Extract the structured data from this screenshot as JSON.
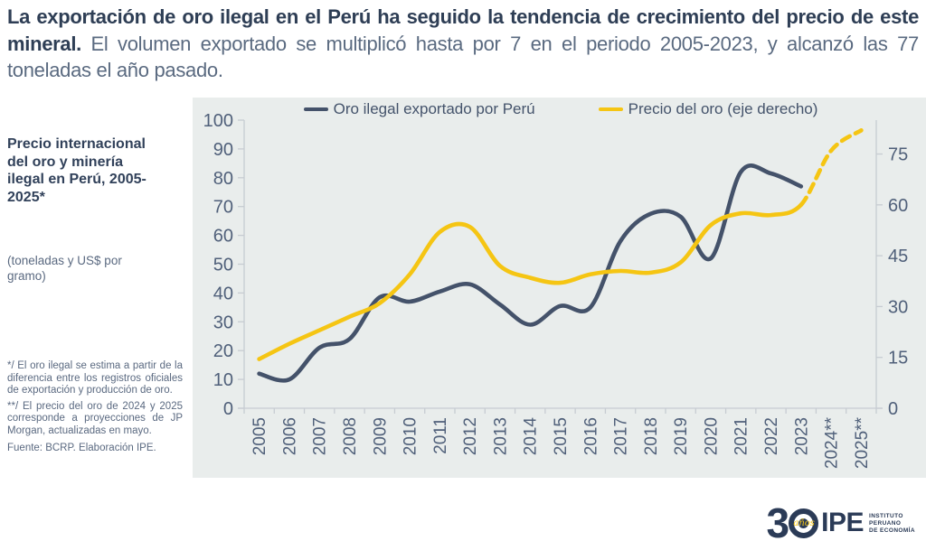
{
  "title": {
    "bold": "La exportación de oro ilegal en el Perú ha seguido la tendencia de crecimiento del precio de este mineral.",
    "regular": " El volumen exportado se multiplicó hasta por 7 en el periodo 2005-2023, y alcanzó las 77 toneladas el año pasado."
  },
  "sidebar": {
    "heading": "Precio internacional del oro y minería ilegal en Perú, 2005-2025*",
    "subtitle": "(toneladas y US$ por gramo)",
    "footnote1": "*/ El oro ilegal se estima a partir de la diferencia entre los registros oficiales de exportación y producción de oro.",
    "footnote2": "**/ El precio del oro de 2024 y 2025 corresponde a proyecciones de JP Morgan, actualizadas en mayo.",
    "source": "Fuente: BCRP. Elaboración IPE."
  },
  "legend": {
    "items": [
      {
        "label": "Oro ilegal exportado por Perú",
        "color": "#44526a"
      },
      {
        "label": "Precio del oro (eje derecho)",
        "color": "#f5c513"
      }
    ]
  },
  "logo": {
    "three": "3",
    "anios": "años",
    "ipe": "IPE",
    "org_lines": [
      "INSTITUTO",
      "PERUANO",
      "DE ECONOMÍA"
    ]
  },
  "colors": {
    "navy_line": "#44526a",
    "gold_line": "#f5c513",
    "axis_line": "#c7ccd2",
    "axis_text": "#50607a",
    "panel_bg": "#e9edec"
  },
  "chart_data": {
    "type": "line",
    "title": "Precio internacional del oro y minería ilegal en Perú, 2005-2025",
    "subtitle": "toneladas y US$ por gramo",
    "legend_position": "top",
    "grid": false,
    "categories": [
      "2005",
      "2006",
      "2007",
      "2008",
      "2009",
      "2010",
      "2011",
      "2012",
      "2013",
      "2014",
      "2015",
      "2016",
      "2017",
      "2018",
      "2019",
      "2020",
      "2021",
      "2022",
      "2023",
      "2024**",
      "2025**"
    ],
    "left_axis": {
      "label": "toneladas",
      "min": 0,
      "max": 100,
      "ticks": [
        100,
        90,
        80,
        70,
        60,
        50,
        40,
        30,
        20,
        10,
        0
      ]
    },
    "right_axis": {
      "label": "US$ por gramo",
      "min": 0,
      "max": 85,
      "ticks": [
        75,
        60,
        45,
        30,
        15,
        0
      ]
    },
    "series": [
      {
        "name": "Oro ilegal exportado por Perú",
        "axis": "left",
        "color": "#44526a",
        "style": "solid",
        "values": [
          12,
          10,
          21,
          24,
          38.5,
          37,
          40.5,
          43,
          36,
          29,
          35.5,
          35,
          58,
          67.5,
          66.5,
          52,
          82,
          81.5,
          77,
          null,
          null
        ]
      },
      {
        "name": "Precio del oro (eje derecho)",
        "axis": "right",
        "color": "#f5c513",
        "style": "solid-then-dashed",
        "dashed_from_index": 18,
        "values": [
          14.5,
          19,
          23,
          27,
          31,
          39.5,
          52,
          53.5,
          42,
          38.5,
          37,
          39.5,
          40.5,
          40,
          43,
          54,
          57.5,
          57,
          60,
          76,
          82
        ]
      }
    ]
  }
}
